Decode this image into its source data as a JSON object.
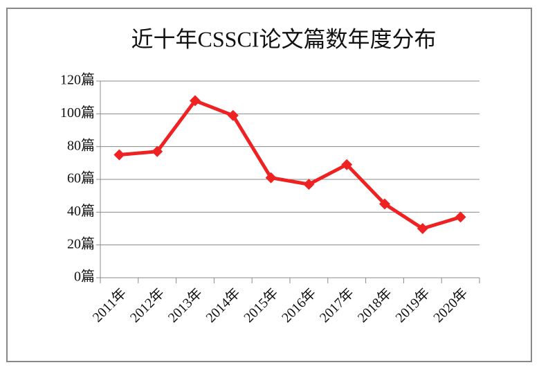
{
  "chart_data": {
    "type": "line",
    "title": "近十年CSSCI论文篇数年度分布",
    "categories": [
      "2011年",
      "2012年",
      "2013年",
      "2014年",
      "2015年",
      "2016年",
      "2017年",
      "2018年",
      "2019年",
      "2020年"
    ],
    "values": [
      75,
      77,
      108,
      99,
      61,
      57,
      69,
      45,
      30,
      37
    ],
    "color": "#ee2222",
    "ylim": [
      0,
      120
    ],
    "yticks": [
      {
        "value": 0,
        "label": "0篇"
      },
      {
        "value": 20,
        "label": "20篇"
      },
      {
        "value": 40,
        "label": "40篇"
      },
      {
        "value": 60,
        "label": "60篇"
      },
      {
        "value": 80,
        "label": "80篇"
      },
      {
        "value": 100,
        "label": "100篇"
      },
      {
        "value": 120,
        "label": "120篇"
      }
    ],
    "grid": true
  }
}
